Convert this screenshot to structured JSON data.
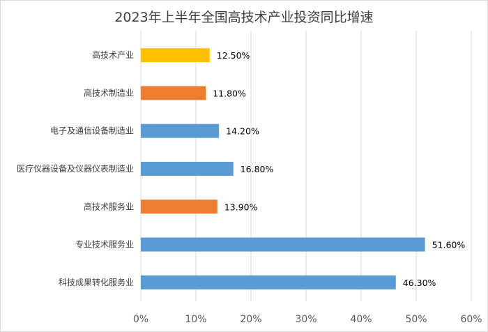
{
  "chart_data": {
    "type": "bar",
    "orientation": "horizontal",
    "title": "2023年上半年全国高技术产业投资同比增速",
    "xlabel": "",
    "ylabel": "",
    "categories": [
      "高技术产业",
      "高技术制造业",
      "电子及通信设备制造业",
      "医疗仪器设备及仪器仪表制造业",
      "高技术服务业",
      "专业技术服务业",
      "科技成果转化服务业"
    ],
    "values": [
      12.5,
      11.8,
      14.2,
      16.8,
      13.9,
      51.6,
      46.3
    ],
    "data_labels": [
      "12.50%",
      "11.80%",
      "14.20%",
      "16.80%",
      "13.90%",
      "51.60%",
      "46.30%"
    ],
    "bar_colors": [
      "#ffc000",
      "#ed7d31",
      "#5b9bd5",
      "#5b9bd5",
      "#ed7d31",
      "#5b9bd5",
      "#5b9bd5"
    ],
    "xlim": [
      0,
      60
    ],
    "x_ticks": [
      "0%",
      "10%",
      "20%",
      "30%",
      "40%",
      "50%",
      "60%"
    ],
    "x_tick_values": [
      0,
      10,
      20,
      30,
      40,
      50,
      60
    ],
    "grid": "vertical",
    "legend": "none"
  }
}
